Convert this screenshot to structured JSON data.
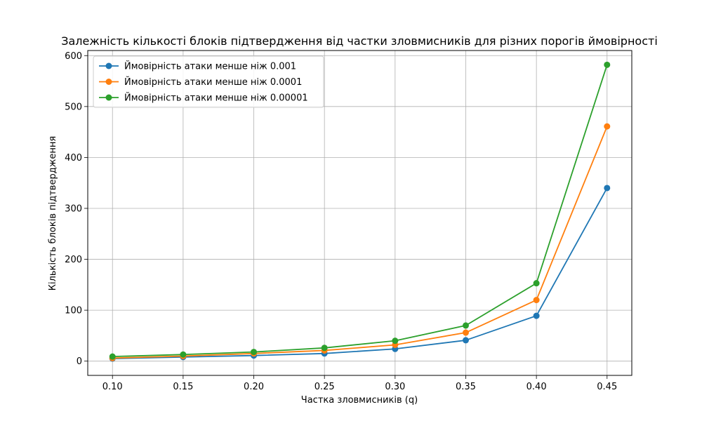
{
  "chart_data": {
    "type": "line",
    "title": "Залежність кількості блоків підтвердження від частки зловмисників для різних порогів ймовірності",
    "xlabel": "Частка зловмисників (q)",
    "ylabel": "Кількість блоків підтвердження",
    "x": [
      0.1,
      0.15,
      0.2,
      0.25,
      0.3,
      0.35,
      0.4,
      0.45
    ],
    "x_tick_labels": [
      "0.10",
      "0.15",
      "0.20",
      "0.25",
      "0.30",
      "0.35",
      "0.40",
      "0.45"
    ],
    "y_ticks": [
      0,
      100,
      200,
      300,
      400,
      500,
      600
    ],
    "y_tick_labels": [
      "0",
      "100",
      "200",
      "300",
      "400",
      "500",
      "600"
    ],
    "xlim": [
      0.0825,
      0.4675
    ],
    "ylim": [
      -28,
      610
    ],
    "grid": true,
    "legend_position": "upper-left",
    "series": [
      {
        "name": "Ймовірність атаки менше ніж 0.001",
        "color": "#1f77b4",
        "values": [
          5,
          8,
          11,
          15,
          24,
          41,
          89,
          340
        ]
      },
      {
        "name": "Ймовірність атаки менше ніж 0.0001",
        "color": "#ff7f0e",
        "values": [
          6,
          10,
          15,
          21,
          32,
          56,
          120,
          461
        ]
      },
      {
        "name": "Ймовірність атаки менше ніж 0.00001",
        "color": "#2ca02c",
        "values": [
          9,
          13,
          18,
          26,
          40,
          70,
          153,
          582
        ]
      }
    ]
  }
}
